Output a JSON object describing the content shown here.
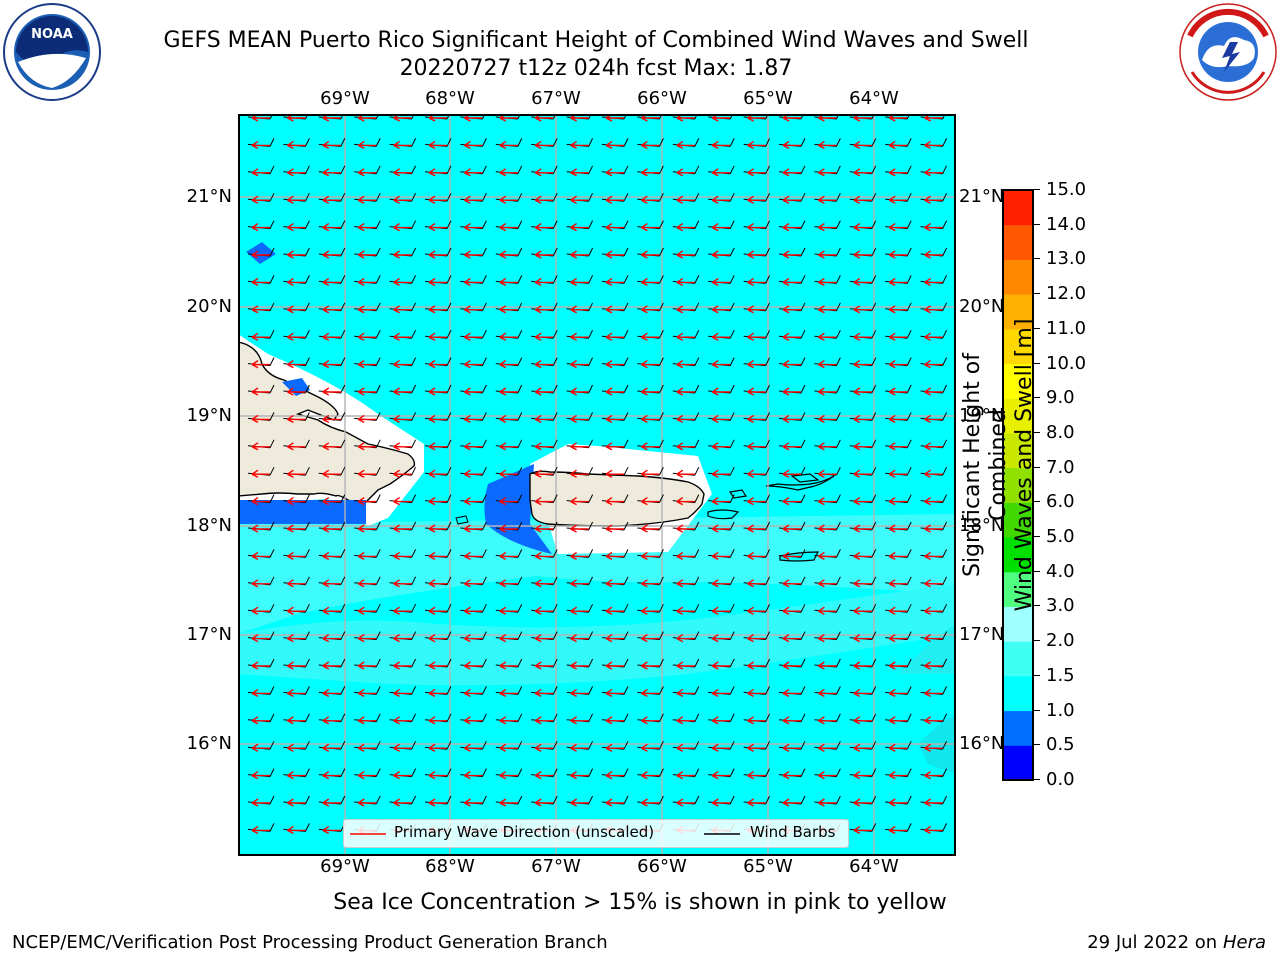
{
  "header": {
    "title_line1": "GEFS MEAN Puerto Rico Significant Height of Combined Wind Waves and Swell",
    "title_line2": "20220727 t12z 024h fcst   Max: 1.87"
  },
  "logos": {
    "left": {
      "name": "noaa-logo",
      "text": "NOAA",
      "ring_text": "NATIONAL OCEANIC AND ATMOSPHERIC ADMINISTRATION · U.S. DEPARTMENT OF COMMERCE"
    },
    "right": {
      "name": "nws-logo",
      "ring_text": "NATIONAL WEATHER SERVICE"
    }
  },
  "map": {
    "lon_ticks": [
      "69°W",
      "68°W",
      "67°W",
      "66°W",
      "65°W",
      "64°W"
    ],
    "lat_ticks": [
      "21°N",
      "20°N",
      "19°N",
      "18°N",
      "17°N",
      "16°N"
    ],
    "legend": {
      "wave_label": "Primary Wave Direction (unscaled)",
      "barb_label": "Wind Barbs"
    },
    "colors": {
      "background_field": "#00ffff",
      "field_1_5_2": "#3ffcfc",
      "land": "#efebdc",
      "ice_mask_white": "#ffffff",
      "deep_blue": "#0a6aff",
      "wave_arrows": "#ff0000",
      "wind_barbs": "#000000"
    }
  },
  "colorbar": {
    "title_line1": "Significant Height of Combined",
    "title_line2": "Wind Waves and Swell [m]",
    "levels": [
      "0.0",
      "0.5",
      "1.0",
      "1.5",
      "2.0",
      "3.0",
      "4.0",
      "5.0",
      "6.0",
      "7.0",
      "8.0",
      "9.0",
      "10.0",
      "11.0",
      "12.0",
      "13.0",
      "14.0",
      "15.0"
    ],
    "colors": [
      "#0000ff",
      "#006eff",
      "#00ffff",
      "#40fff5",
      "#a0ffff",
      "#50ff80",
      "#00e000",
      "#40d800",
      "#90e000",
      "#c8e800",
      "#e8f000",
      "#ffff00",
      "#ffd800",
      "#ffb000",
      "#ff8800",
      "#ff5800",
      "#ff2000"
    ]
  },
  "subnote": "Sea Ice Concentration > 15% is shown in pink to yellow",
  "footer": {
    "left": "NCEP/EMC/Verification Post Processing Product Generation Branch",
    "right_date": "29 Jul 2022 on",
    "right_host": "Hera"
  }
}
